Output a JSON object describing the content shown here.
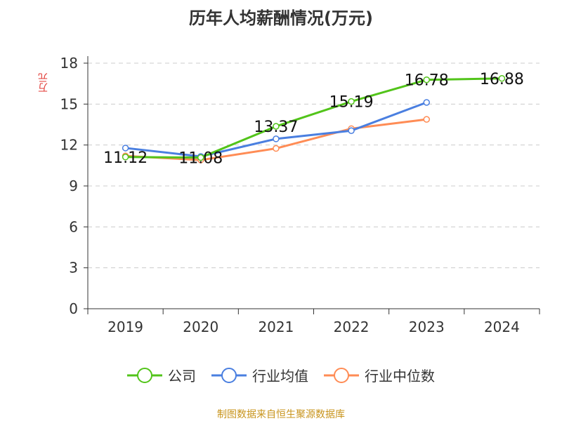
{
  "chart_data": {
    "type": "line",
    "title": "历年人均薪酬情况(万元)",
    "ylabel": "万元",
    "xlabel": "",
    "categories": [
      "2019",
      "2020",
      "2021",
      "2022",
      "2023",
      "2024"
    ],
    "ylim": [
      0,
      18
    ],
    "yticks": [
      0,
      3,
      6,
      9,
      12,
      15,
      18
    ],
    "grid": true,
    "legend_position": "bottom",
    "series": [
      {
        "name": "公司",
        "color": "#52c41a",
        "values": [
          11.12,
          11.08,
          13.37,
          15.19,
          16.78,
          16.88
        ],
        "labels": [
          "11.12",
          "11.08",
          "13.37",
          "15.19",
          "16.78",
          "16.88"
        ]
      },
      {
        "name": "行业均值",
        "color": "#4a7fe0",
        "values": [
          11.78,
          11.16,
          12.45,
          13.05,
          15.12,
          null
        ]
      },
      {
        "name": "行业中位数",
        "color": "#ff8c55",
        "values": [
          11.2,
          10.9,
          11.75,
          13.2,
          13.88,
          null
        ]
      }
    ]
  },
  "source": "制图数据来自恒生聚源数据库"
}
